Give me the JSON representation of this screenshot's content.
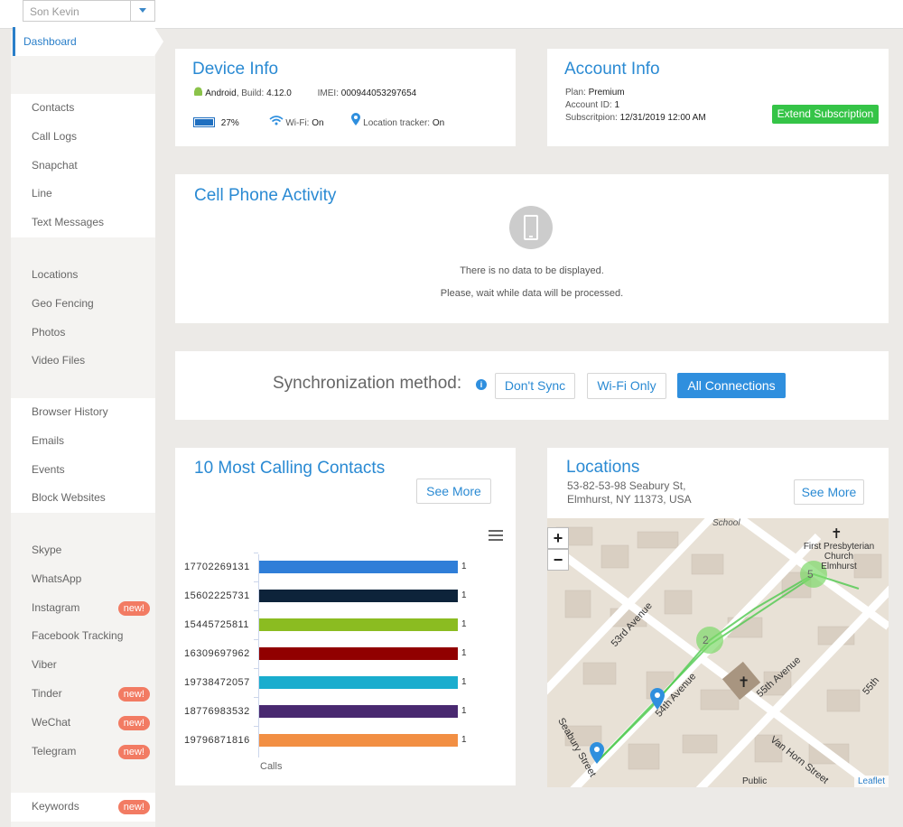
{
  "topbar": {
    "user": "Son Kevin"
  },
  "sidebar": {
    "active": "Dashboard",
    "groups": [
      [
        {
          "label": "Contacts"
        },
        {
          "label": "Call Logs"
        },
        {
          "label": "Snapchat"
        },
        {
          "label": "Line"
        },
        {
          "label": "Text Messages"
        }
      ],
      [
        {
          "label": "Locations"
        },
        {
          "label": "Geo Fencing"
        },
        {
          "label": "Photos"
        },
        {
          "label": "Video Files"
        }
      ],
      [
        {
          "label": "Browser History"
        },
        {
          "label": "Emails"
        },
        {
          "label": "Events"
        },
        {
          "label": "Block Websites"
        }
      ],
      [
        {
          "label": "Skype"
        },
        {
          "label": "WhatsApp"
        },
        {
          "label": "Instagram",
          "badge": "new!"
        },
        {
          "label": "Facebook Tracking"
        },
        {
          "label": "Viber"
        },
        {
          "label": "Tinder",
          "badge": "new!"
        },
        {
          "label": "WeChat",
          "badge": "new!"
        },
        {
          "label": "Telegram",
          "badge": "new!"
        }
      ],
      [
        {
          "label": "Keywords",
          "badge": "new!"
        }
      ]
    ]
  },
  "device_info": {
    "title": "Device Info",
    "os": "Android",
    "build_label": ", Build:",
    "build": "4.12.0",
    "imei_label": "IMEI:",
    "imei": "000944053297654",
    "battery": "27%",
    "wifi_label": "Wi-Fi:",
    "wifi": "On",
    "tracker_label": "Location tracker:",
    "tracker": "On",
    "battery_level": 0.27
  },
  "account_info": {
    "title": "Account Info",
    "plan_label": "Plan:",
    "plan": "Premium",
    "id_label": "Account ID:",
    "id": "1",
    "sub_label": "Subscritpion:",
    "sub": "12/31/2019 12:00 AM",
    "extend_button": "Extend Subscription"
  },
  "activity": {
    "title": "Cell Phone Activity",
    "empty1": "There is no data to be displayed.",
    "empty2": "Please, wait while data will be processed."
  },
  "sync": {
    "label": "Synchronization method:",
    "options": [
      "Don't Sync",
      "Wi-Fi Only",
      "All Connections"
    ],
    "selected": "All Connections"
  },
  "calling": {
    "title": "10 Most Calling Contacts",
    "see_more": "See More",
    "chart_data": {
      "type": "bar",
      "orientation": "horizontal",
      "categories": [
        "17702269131",
        "15602225731",
        "15445725811",
        "16309697962",
        "19738472057",
        "18776983532",
        "19796871816"
      ],
      "values": [
        1,
        1,
        1,
        1,
        1,
        1,
        1
      ],
      "colors": [
        "#2f7ed8",
        "#0d233a",
        "#8bbc21",
        "#910000",
        "#1aadce",
        "#492970",
        "#f28f43"
      ],
      "xlabel": "Calls",
      "xlim": [
        0,
        1
      ]
    }
  },
  "locations": {
    "title": "Locations",
    "address1": "53-82-53-98 Seabury St,",
    "address2": "Elmhurst, NY 11373, USA",
    "see_more": "See More",
    "map": {
      "clusters": [
        "2",
        "5"
      ],
      "zoom_in": "+",
      "zoom_out": "−",
      "attribution": "Leaflet",
      "labels": [
        "53rd Avenue",
        "54th Avenue",
        "55th Avenue",
        "Van Horn Street",
        "School",
        "First Presbyterian",
        "Church",
        "Elmhurst",
        "Public",
        "Seabury Street",
        "55th"
      ]
    }
  }
}
